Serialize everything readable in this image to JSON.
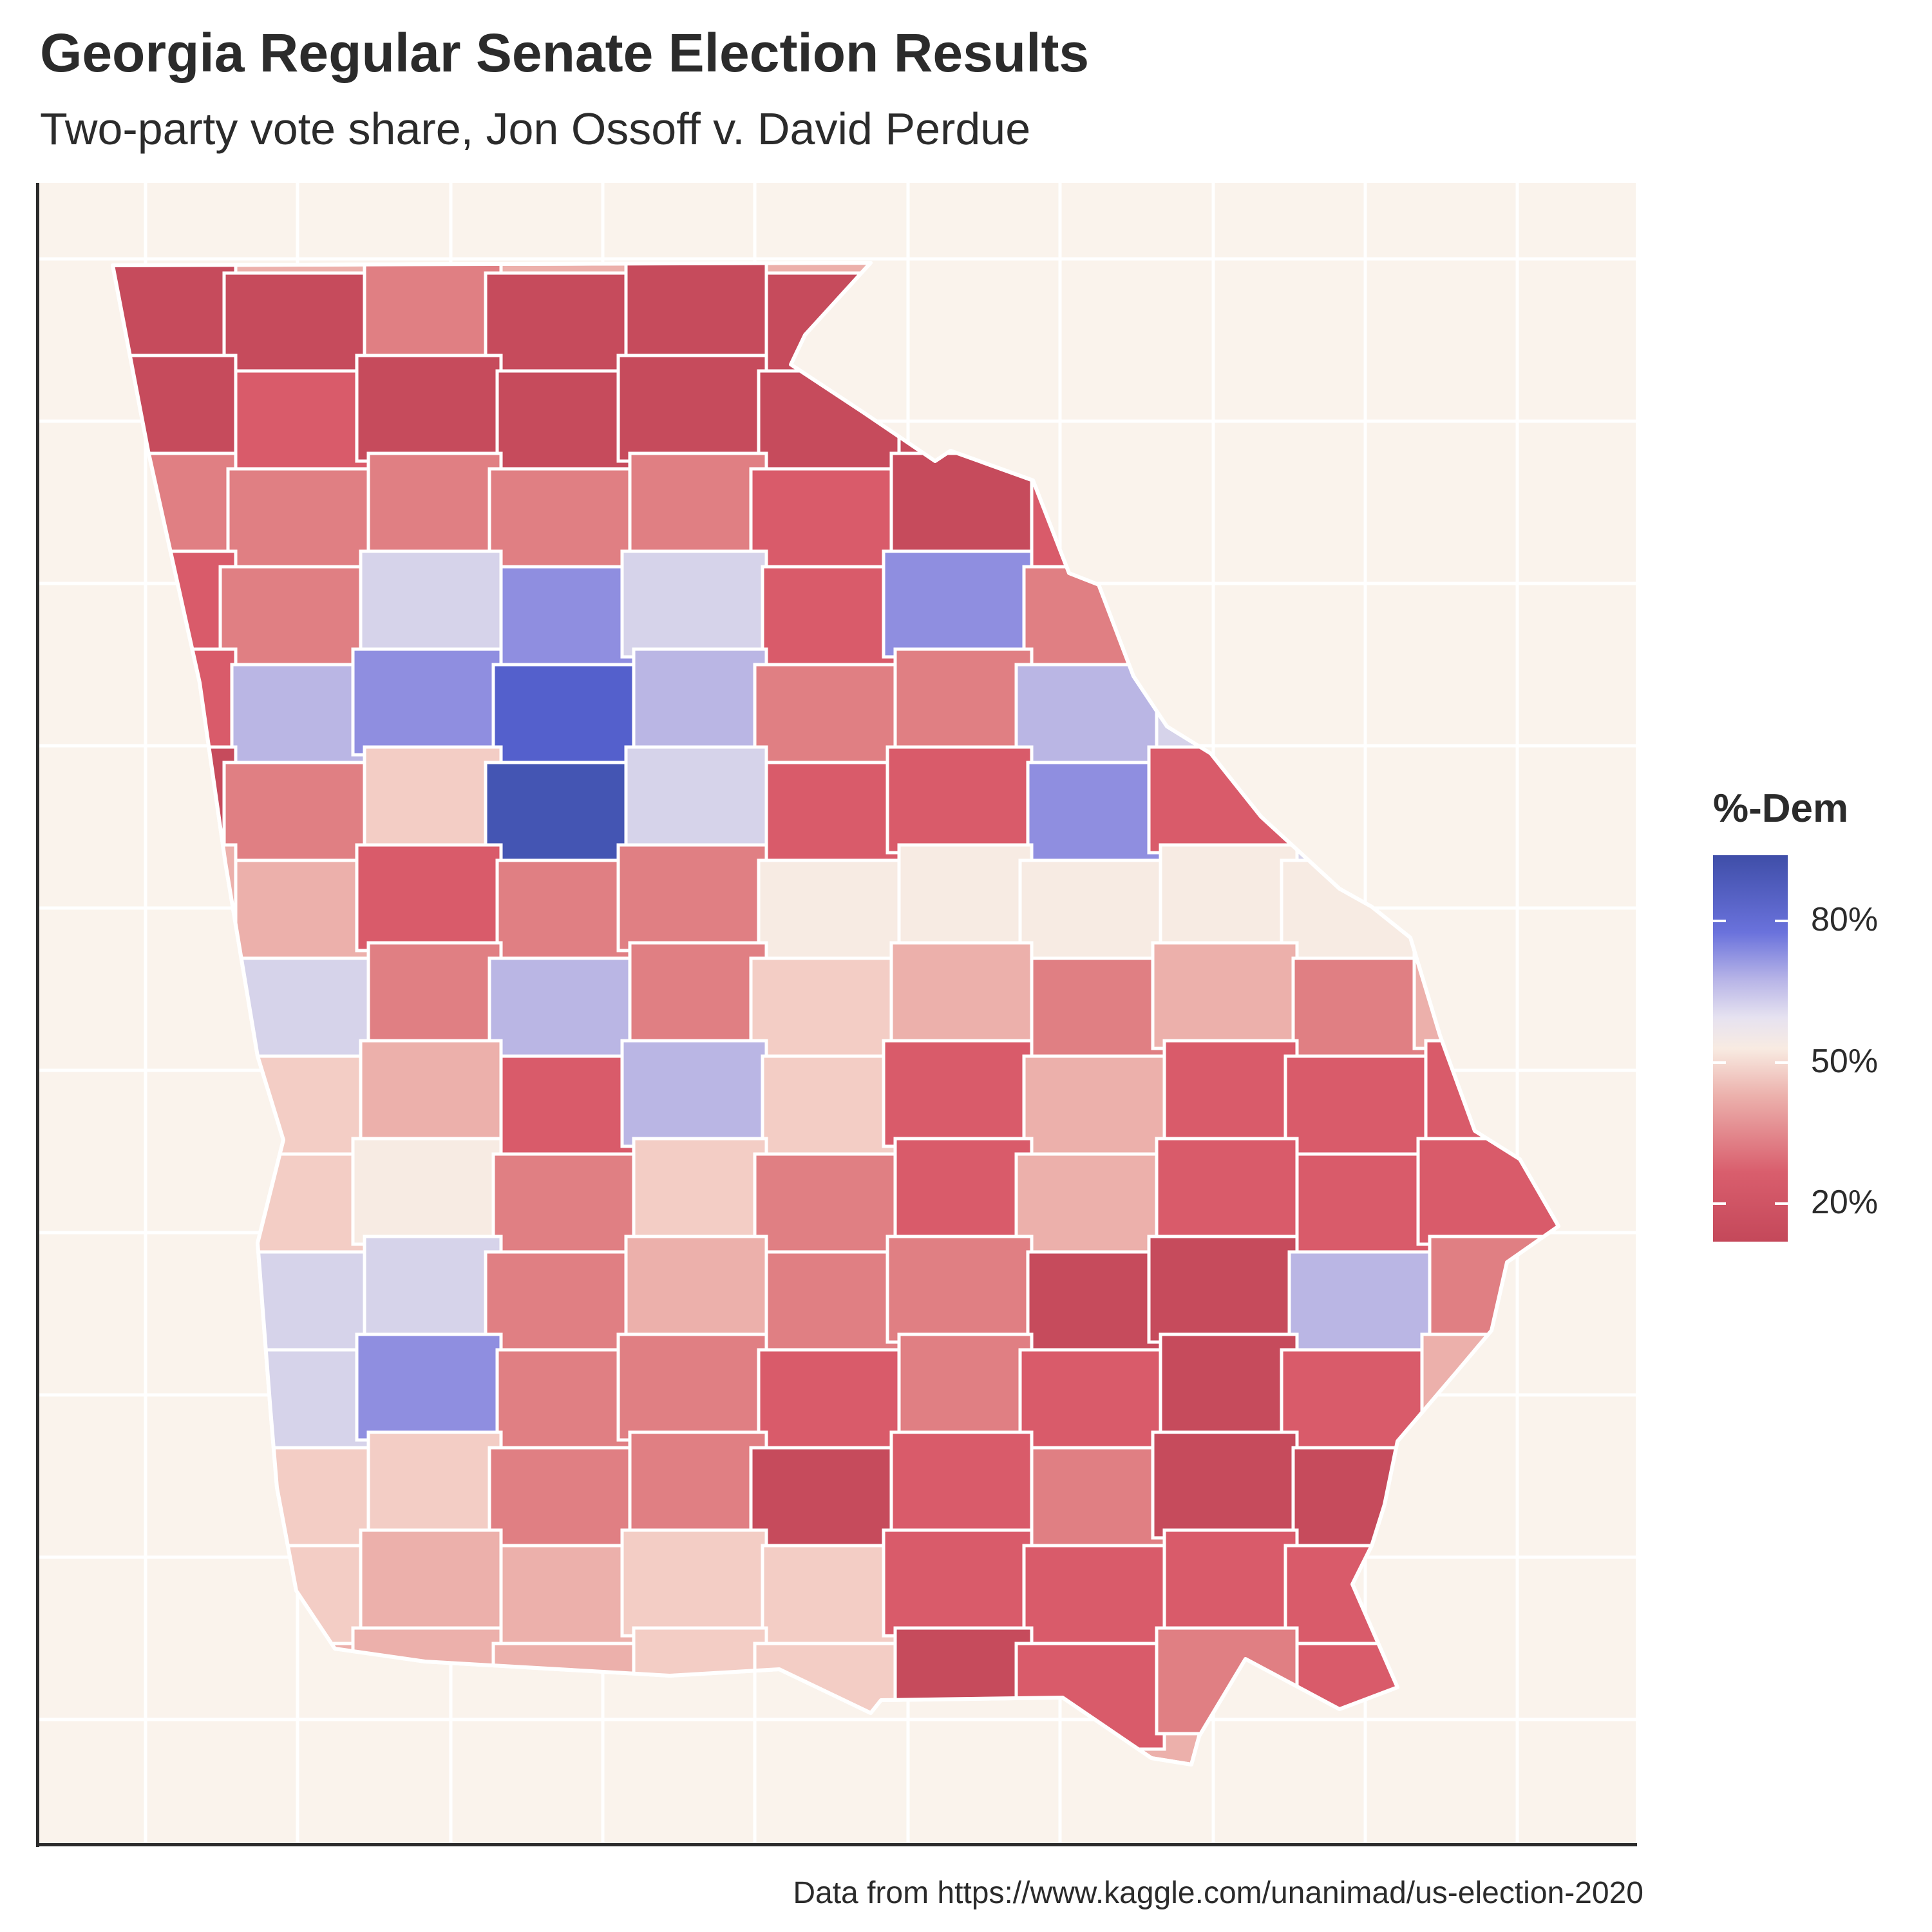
{
  "title": "Georgia Regular Senate Election Results",
  "subtitle": "Two-party vote share, Jon Ossoff v. David Perdue",
  "caption": "Data from https://www.kaggle.com/unanimad/us-election-2020",
  "legend": {
    "title": "%-Dem",
    "ticks": [
      "80%",
      "50%",
      "20%"
    ],
    "tick_values": [
      80,
      50,
      20
    ],
    "range": [
      12,
      94
    ]
  },
  "chart_data": {
    "type": "choropleth",
    "title": "Georgia Regular Senate Election Results",
    "subtitle": "Two-party vote share, Jon Ossoff v. David Perdue",
    "fill_variable": "%-Dem",
    "scale": {
      "low": "#c4485a",
      "mid": "#f8ebe2",
      "high": "#3f4ea8",
      "midpoint": 50
    },
    "grid": true,
    "legend_position": "right"
  },
  "colors": {
    "panel_bg": "#faf3ec",
    "grid": "#ffffff",
    "border": "#ffffff",
    "deep_red": "#c64b5c",
    "red": "#d95b6a",
    "mid_red": "#e07f83",
    "light_red": "#ecb0ab",
    "pale_red": "#f3cdc5",
    "cream": "#f7ebe3",
    "lavender": "#d6d3ea",
    "light_blue": "#bab6e4",
    "blue": "#8f8ee0",
    "strong_blue": "#5460cc",
    "deep_blue": "#4455b3"
  }
}
